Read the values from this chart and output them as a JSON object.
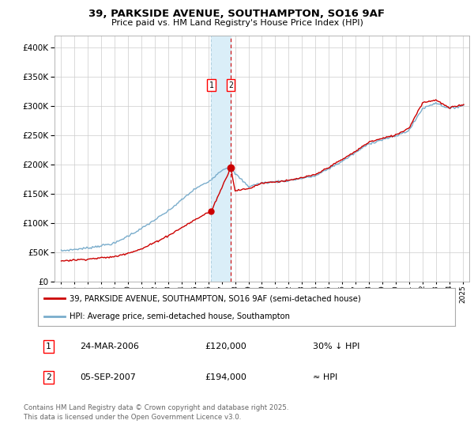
{
  "title1": "39, PARKSIDE AVENUE, SOUTHAMPTON, SO16 9AF",
  "title2": "Price paid vs. HM Land Registry's House Price Index (HPI)",
  "legend1": "39, PARKSIDE AVENUE, SOUTHAMPTON, SO16 9AF (semi-detached house)",
  "legend2": "HPI: Average price, semi-detached house, Southampton",
  "sale1_date_label": "24-MAR-2006",
  "sale1_price": 120000,
  "sale1_hpi_note": "30% ↓ HPI",
  "sale2_date_label": "05-SEP-2007",
  "sale2_price": 194000,
  "sale2_hpi_note": "≈ HPI",
  "sale1_x": 2006.22,
  "sale2_x": 2007.67,
  "footer": "Contains HM Land Registry data © Crown copyright and database right 2025.\nThis data is licensed under the Open Government Licence v3.0.",
  "red_color": "#cc0000",
  "blue_color": "#7aadcc",
  "shade_color": "#daeef8",
  "grid_color": "#cccccc",
  "bg_color": "#ffffff",
  "ylim": [
    0,
    420000
  ],
  "xlim": [
    1994.5,
    2025.5
  ],
  "hpi_breakpoints": [
    1995,
    1997,
    1999,
    2001,
    2003,
    2005,
    2006,
    2007,
    2007.5,
    2009,
    2010,
    2012,
    2014,
    2016,
    2017,
    2018,
    2019,
    2020,
    2021,
    2022,
    2023,
    2024,
    2025
  ],
  "hpi_values": [
    52000,
    57000,
    65000,
    90000,
    120000,
    158000,
    170000,
    190000,
    195000,
    162000,
    168000,
    172000,
    180000,
    205000,
    220000,
    235000,
    242000,
    248000,
    258000,
    295000,
    305000,
    295000,
    300000
  ],
  "red_breakpoints": [
    1995,
    1997,
    1999,
    2001,
    2003,
    2005,
    2006,
    2006.22,
    2007.67,
    2008,
    2009,
    2010,
    2012,
    2014,
    2016,
    2017,
    2018,
    2019,
    2020,
    2021,
    2022,
    2023,
    2024,
    2025
  ],
  "red_values": [
    35000,
    38000,
    42000,
    55000,
    78000,
    105000,
    118000,
    120000,
    194000,
    155000,
    158000,
    168000,
    172000,
    182000,
    208000,
    222000,
    238000,
    244000,
    250000,
    262000,
    305000,
    310000,
    296000,
    302000
  ]
}
